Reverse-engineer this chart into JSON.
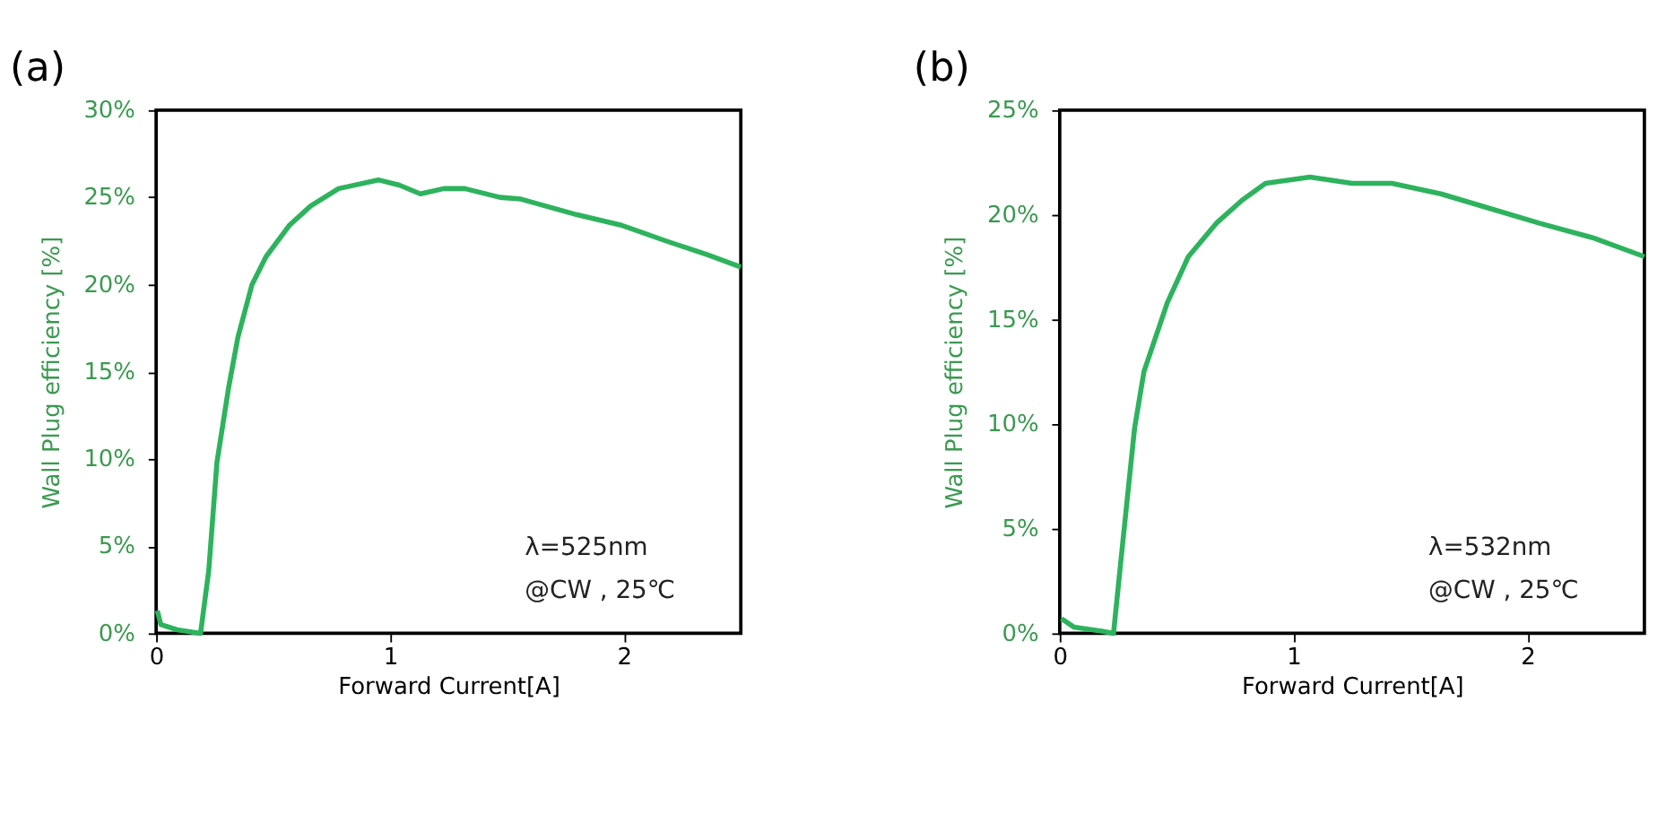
{
  "chart_data": [
    {
      "type": "line",
      "title": "(a)",
      "xlabel": "Forward Current[A]",
      "ylabel": "Wall Plug efficiency [%]",
      "annotations": [
        "λ=525nm",
        "@CW , 25℃"
      ],
      "xlim": [
        0,
        2.5
      ],
      "xticks": [
        0,
        1,
        2
      ],
      "ylim": [
        0,
        30
      ],
      "yticks": [
        {
          "value": 0,
          "label": "0%"
        },
        {
          "value": 5,
          "label": "5%"
        },
        {
          "value": 10,
          "label": "10%"
        },
        {
          "value": 15,
          "label": "15%"
        },
        {
          "value": 20,
          "label": "20%"
        },
        {
          "value": 25,
          "label": "25%"
        },
        {
          "value": 30,
          "label": "30%"
        }
      ],
      "grid": false,
      "marker": "none",
      "line_style": "solid",
      "series": [
        {
          "color": "#2db35d",
          "x": [
            0.005,
            0.02,
            0.09,
            0.19,
            0.225,
            0.26,
            0.31,
            0.35,
            0.41,
            0.47,
            0.57,
            0.66,
            0.78,
            0.95,
            1.04,
            1.13,
            1.23,
            1.32,
            1.47,
            1.56,
            1.8,
            1.99,
            2.18,
            2.36,
            2.5
          ],
          "values": [
            1.3,
            0.5,
            0.2,
            0,
            3.6,
            9.8,
            14.1,
            17.0,
            20.0,
            21.6,
            23.4,
            24.5,
            25.5,
            26.0,
            25.7,
            25.2,
            25.5,
            25.5,
            25.0,
            24.9,
            24.0,
            23.4,
            22.5,
            21.7,
            21.0
          ]
        }
      ]
    },
    {
      "type": "line",
      "title": "(b)",
      "xlabel": "Forward Current[A]",
      "ylabel": "Wall Plug efficiency [%]",
      "annotations": [
        "λ=532nm",
        "@CW , 25℃"
      ],
      "xlim": [
        0,
        2.5
      ],
      "xticks": [
        0,
        1,
        2
      ],
      "ylim": [
        0,
        25
      ],
      "yticks": [
        {
          "value": 0,
          "label": "0%"
        },
        {
          "value": 5,
          "label": "5%"
        },
        {
          "value": 10,
          "label": "10%"
        },
        {
          "value": 15,
          "label": "15%"
        },
        {
          "value": 20,
          "label": "20%"
        },
        {
          "value": 25,
          "label": "25%"
        }
      ],
      "grid": false,
      "marker": "none",
      "line_style": "solid",
      "series": [
        {
          "color": "#2db35d",
          "x": [
            0.007,
            0.06,
            0.18,
            0.23,
            0.27,
            0.32,
            0.36,
            0.46,
            0.55,
            0.67,
            0.78,
            0.88,
            1.07,
            1.25,
            1.42,
            1.63,
            1.81,
            2.05,
            2.28,
            2.5
          ],
          "values": [
            0.7,
            0.3,
            0.1,
            0,
            4.4,
            9.8,
            12.5,
            15.8,
            18.0,
            19.6,
            20.7,
            21.5,
            21.8,
            21.5,
            21.5,
            21.0,
            20.4,
            19.6,
            18.9,
            18.0
          ]
        }
      ]
    }
  ]
}
